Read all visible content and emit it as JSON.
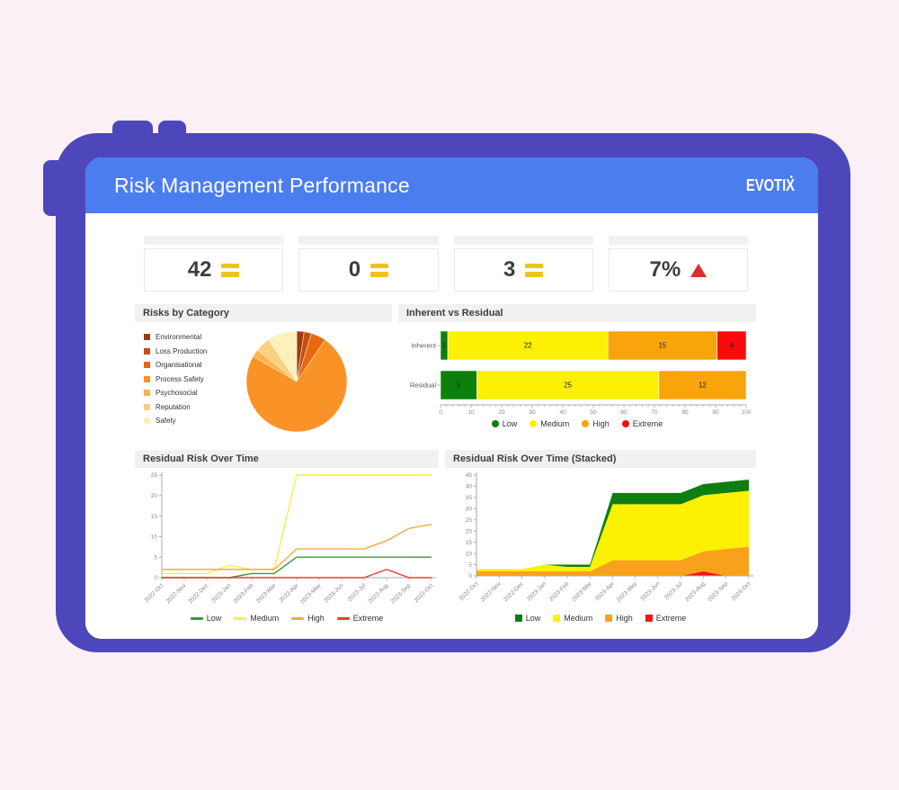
{
  "header": {
    "title": "Risk Management Performance",
    "brand": "EVOTIX"
  },
  "colors": {
    "frame_purple": "#4d47bb",
    "header_blue": "#4b7df1",
    "page_background": "#fbf0f5",
    "panel_strip_gray": "#f1f1f1",
    "kpi_equals_yellow": "#efc319",
    "kpi_triangle_red": "#e02b2b",
    "low_green": "#0b800b",
    "medium_yellow": "#fcf003",
    "high_orange": "#f9a40b",
    "extreme_red": "#fa0a0a"
  },
  "kpis": [
    {
      "value": "42",
      "icon": "equals"
    },
    {
      "value": "0",
      "icon": "equals"
    },
    {
      "value": "3",
      "icon": "equals"
    },
    {
      "value": "7%",
      "icon": "triangle-up"
    }
  ],
  "chart_data": [
    {
      "id": "risks_by_category",
      "type": "pie",
      "title": "Risks by Category",
      "labels": [
        "Environmental",
        "Loss Production",
        "Organisational",
        "Process Safety",
        "Psychosocial",
        "Reputation",
        "Safety"
      ],
      "values": [
        1,
        1,
        2,
        31,
        1,
        2,
        4
      ],
      "colors": [
        "#9e3a0e",
        "#c54f0d",
        "#e8680f",
        "#f99327",
        "#fdb44e",
        "#fbd07e",
        "#fdf0b8"
      ],
      "legend_position": "left",
      "start_angle_deg": -90,
      "direction": "clockwise"
    },
    {
      "id": "inherent_vs_residual",
      "type": "bar",
      "title": "Inherent vs Residual",
      "orientation": "horizontal",
      "stacked": true,
      "categories": [
        "Inherent",
        "Residual"
      ],
      "series": [
        {
          "name": "Low",
          "color": "#0b800b",
          "values": [
            1,
            5
          ]
        },
        {
          "name": "Medium",
          "color": "#fcf003",
          "values": [
            22,
            25
          ]
        },
        {
          "name": "High",
          "color": "#f9a40b",
          "values": [
            15,
            12
          ]
        },
        {
          "name": "Extreme",
          "color": "#fa0a0a",
          "values": [
            4,
            0
          ]
        }
      ],
      "xlim": [
        0,
        100
      ],
      "xticks": [
        0,
        10,
        20,
        30,
        40,
        50,
        60,
        70,
        80,
        90,
        100
      ],
      "xlabel": "",
      "ylabel": "",
      "note": "segment widths shown as percent of row total; data labels show counts",
      "legend": {
        "marker": "circle",
        "position": "bottom",
        "labels": [
          "Low",
          "Medium",
          "High",
          "Extreme"
        ]
      }
    },
    {
      "id": "residual_risk_over_time",
      "type": "line",
      "title": "Residual Risk Over Time",
      "x": [
        "2022-Oct",
        "2022-Nov",
        "2022-Dec",
        "2023-Jan",
        "2023-Feb",
        "2023-Mar",
        "2023-Apr",
        "2023-May",
        "2023-Jun",
        "2023-Jul",
        "2023-Aug",
        "2023-Sep",
        "2023-Oct"
      ],
      "series": [
        {
          "name": "Low",
          "color": "#3c963c",
          "values": [
            0,
            0,
            0,
            0,
            1,
            1,
            5,
            5,
            5,
            5,
            5,
            5,
            5
          ]
        },
        {
          "name": "Medium",
          "color": "#ffe94f",
          "values": [
            1,
            1,
            1,
            3,
            2,
            2,
            25,
            25,
            25,
            25,
            25,
            25,
            25
          ]
        },
        {
          "name": "High",
          "color": "#faaa41",
          "values": [
            2,
            2,
            2,
            2,
            2,
            2,
            7,
            7,
            7,
            7,
            9,
            12,
            13
          ]
        },
        {
          "name": "Extreme",
          "color": "#f03c2d",
          "values": [
            0,
            0,
            0,
            0,
            0,
            0,
            0,
            0,
            0,
            0,
            2,
            0,
            0
          ]
        }
      ],
      "ylim": [
        0,
        25
      ],
      "yticks": [
        0,
        5,
        10,
        15,
        20,
        25
      ],
      "grid": false,
      "legend": {
        "marker": "line",
        "position": "bottom",
        "labels": [
          "Low",
          "Medium",
          "High",
          "Extreme"
        ]
      }
    },
    {
      "id": "residual_risk_over_time_stacked",
      "type": "area",
      "title": "Residual Risk Over Time (Stacked)",
      "x": [
        "2022-Oct",
        "2022-Nov",
        "2022-Dec",
        "2023-Jan",
        "2023-Feb",
        "2023-Mar",
        "2023-Apr",
        "2023-May",
        "2023-Jun",
        "2023-Jul",
        "2023-Aug",
        "2023-Sep",
        "2023-Oct"
      ],
      "stack_order_bottom_to_top": [
        "Extreme",
        "High",
        "Medium",
        "Low"
      ],
      "series": [
        {
          "name": "Extreme",
          "color": "#f01414",
          "values": [
            0,
            0,
            0,
            0,
            0,
            0,
            0,
            0,
            0,
            0,
            2,
            0,
            0
          ]
        },
        {
          "name": "High",
          "color": "#f9a11b",
          "values": [
            2,
            2,
            2,
            2,
            2,
            2,
            7,
            7,
            7,
            7,
            9,
            12,
            13
          ]
        },
        {
          "name": "Medium",
          "color": "#fcf003",
          "values": [
            1,
            1,
            1,
            3,
            2,
            2,
            25,
            25,
            25,
            25,
            25,
            25,
            25
          ]
        },
        {
          "name": "Low",
          "color": "#0d7f11",
          "values": [
            0,
            0,
            0,
            0,
            1,
            1,
            5,
            5,
            5,
            5,
            5,
            5,
            5
          ]
        }
      ],
      "ylim": [
        0,
        45
      ],
      "yticks": [
        0,
        5,
        10,
        15,
        20,
        25,
        30,
        35,
        40,
        45
      ],
      "grid": false,
      "legend": {
        "marker": "square",
        "position": "bottom",
        "labels": [
          "Low",
          "Medium",
          "High",
          "Extreme"
        ]
      }
    }
  ]
}
